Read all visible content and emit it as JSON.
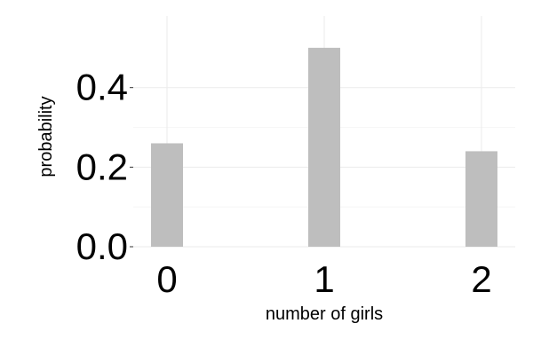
{
  "chart_data": {
    "type": "bar",
    "title": "",
    "xlabel": "number of girls",
    "ylabel": "probability",
    "categories": [
      "0",
      "1",
      "2"
    ],
    "values": [
      0.26,
      0.5,
      0.24
    ],
    "ylim": [
      0,
      0.58
    ],
    "yticks": [
      0.0,
      0.2,
      0.4
    ],
    "ytick_labels": [
      "0.0",
      "0.2",
      "0.4"
    ],
    "grid": true,
    "legend": "none",
    "colors": {
      "bar": "#bebebe",
      "grid": "#ebebeb",
      "background": "#ffffff"
    }
  }
}
